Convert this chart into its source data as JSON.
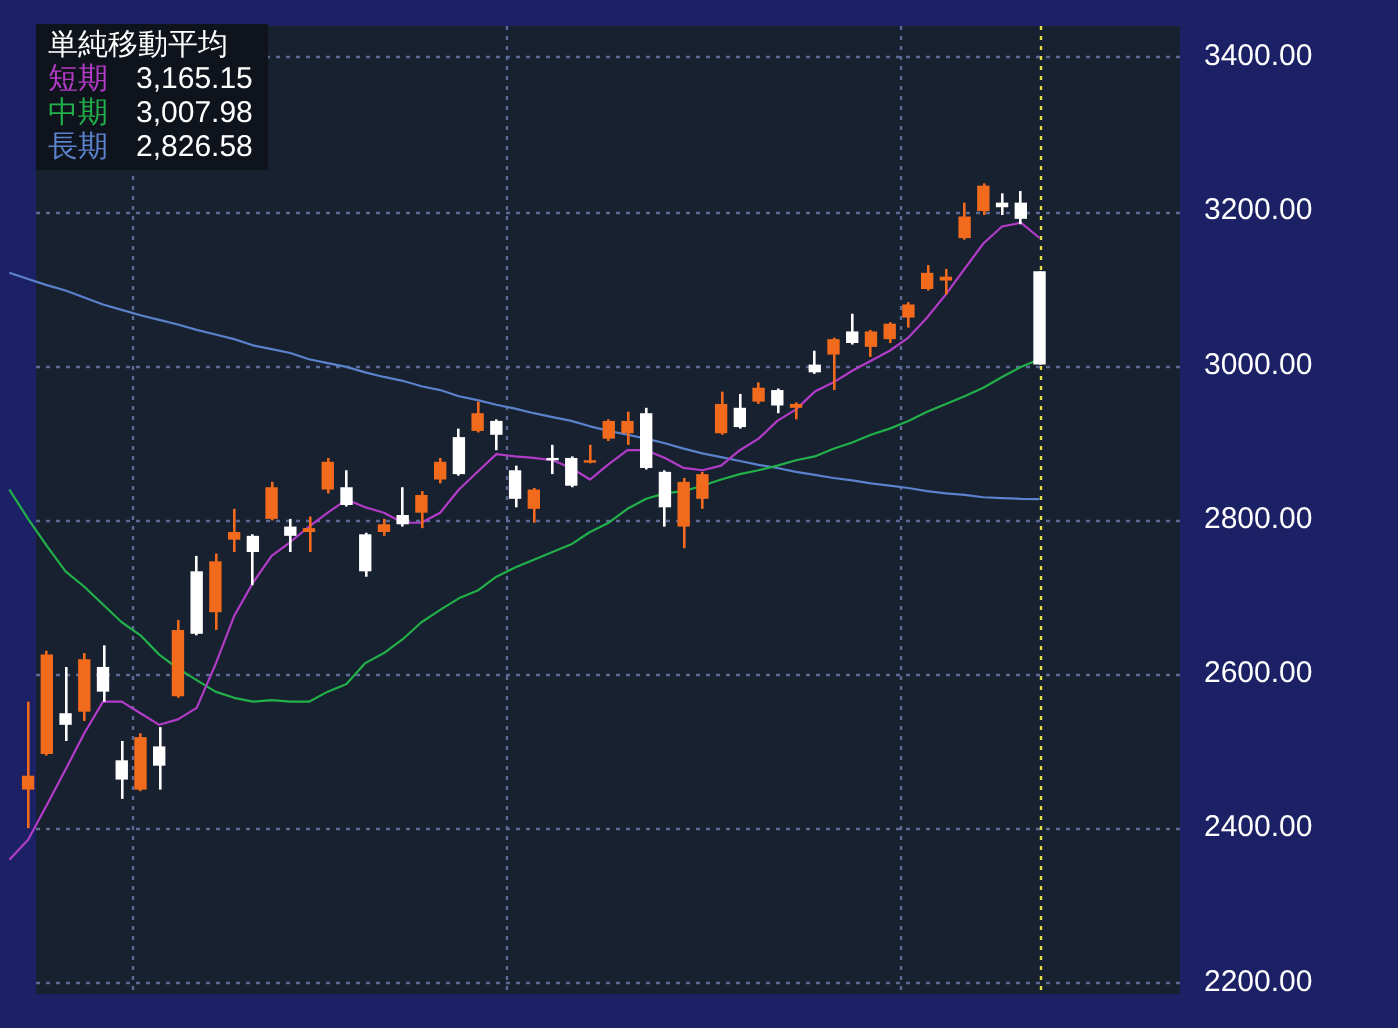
{
  "chart_data": {
    "type": "candlestick",
    "legend_title": "単純移動平均",
    "legend": "top left",
    "grid": "y",
    "categories": [
      null,
      null,
      null,
      null,
      null,
      null,
      null,
      null,
      null,
      null,
      null,
      null,
      null,
      null,
      null,
      null,
      null,
      null,
      null,
      null,
      null,
      null,
      null,
      null,
      null,
      null,
      null,
      null,
      null,
      null,
      null,
      null,
      null,
      null,
      null,
      null,
      null,
      null,
      null,
      null,
      null,
      null,
      null,
      null,
      null,
      null,
      null,
      null,
      null,
      null,
      null,
      null,
      null,
      null,
      null,
      null,
      null,
      null,
      null,
      null,
      null,
      null,
      null
    ],
    "ohlc": [
      null,
      [
        2450,
        2564,
        2400,
        2468
      ],
      [
        2496,
        2630,
        2494,
        2625
      ],
      [
        2549,
        2609,
        2513,
        2534
      ],
      [
        2551,
        2627,
        2539,
        2619
      ],
      [
        2609,
        2637,
        2564,
        2577
      ],
      [
        2488,
        2513,
        2438,
        2463
      ],
      [
        2450,
        2523,
        2448,
        2518
      ],
      [
        2506,
        2531,
        2450,
        2481
      ],
      [
        2571,
        2670,
        2569,
        2657
      ],
      [
        2733,
        2753,
        2650,
        2652
      ],
      [
        2680,
        2756,
        2657,
        2746
      ],
      [
        2774,
        2814,
        2758,
        2784
      ],
      [
        2779,
        2781,
        2715,
        2758
      ],
      [
        2801,
        2849,
        2799,
        2842
      ],
      [
        2791,
        2801,
        2758,
        2779
      ],
      [
        2784,
        2804,
        2758,
        2789
      ],
      [
        2839,
        2880,
        2834,
        2875
      ],
      [
        2842,
        2864,
        2817,
        2819
      ],
      [
        2781,
        2783,
        2726,
        2733
      ],
      [
        2784,
        2801,
        2779,
        2794
      ],
      [
        2806,
        2842,
        2791,
        2794
      ],
      [
        2809,
        2837,
        2789,
        2832
      ],
      [
        2852,
        2880,
        2847,
        2875
      ],
      [
        2907,
        2918,
        2857,
        2859
      ],
      [
        2915,
        2953,
        2913,
        2938
      ],
      [
        2928,
        2930,
        2890,
        2910
      ],
      [
        2864,
        2870,
        2816,
        2827
      ],
      [
        2814,
        2841,
        2796,
        2839
      ],
      [
        2880,
        2897,
        2859,
        2877
      ],
      [
        2880,
        2882,
        2842,
        2844
      ],
      [
        2875,
        2897,
        2873,
        2877
      ],
      [
        2905,
        2930,
        2902,
        2928
      ],
      [
        2912,
        2940,
        2897,
        2928
      ],
      [
        2938,
        2945,
        2865,
        2867
      ],
      [
        2862,
        2864,
        2791,
        2816
      ],
      [
        2791,
        2854,
        2763,
        2849
      ],
      [
        2827,
        2862,
        2814,
        2859
      ],
      [
        2912,
        2966,
        2910,
        2950
      ],
      [
        2945,
        2963,
        2918,
        2920
      ],
      [
        2953,
        2978,
        2950,
        2971
      ],
      [
        2968,
        2970,
        2938,
        2948
      ],
      [
        2945,
        2952,
        2930,
        2950
      ],
      [
        3001,
        3019,
        2989,
        2991
      ],
      [
        3014,
        3036,
        2968,
        3034
      ],
      [
        3044,
        3067,
        3027,
        3029
      ],
      [
        3024,
        3046,
        3011,
        3044
      ],
      [
        3034,
        3056,
        3029,
        3054
      ],
      [
        3062,
        3082,
        3049,
        3079
      ],
      [
        3099,
        3130,
        3097,
        3120
      ],
      [
        3110,
        3125,
        3092,
        3115
      ],
      [
        3165,
        3211,
        3163,
        3193
      ],
      [
        3200,
        3236,
        3195,
        3233
      ],
      [
        3211,
        3223,
        3195,
        3205
      ],
      [
        3211,
        3226,
        3183,
        3190
      ],
      [
        3122,
        3122,
        3001,
        3001
      ],
      null,
      null,
      null,
      null,
      null,
      null,
      null
    ],
    "colors": [
      null,
      "#f26b1d",
      "#f26b1d",
      "#ffffff",
      "#f26b1d",
      "#ffffff",
      "#ffffff",
      "#f26b1d",
      "#ffffff",
      "#f26b1d",
      "#ffffff",
      "#f26b1d",
      "#f26b1d",
      "#ffffff",
      "#f26b1d",
      "#ffffff",
      "#f26b1d",
      "#f26b1d",
      "#ffffff",
      "#ffffff",
      "#f26b1d",
      "#ffffff",
      "#f26b1d",
      "#f26b1d",
      "#ffffff",
      "#f26b1d",
      "#ffffff",
      "#ffffff",
      "#f26b1d",
      "#ffffff",
      "#ffffff",
      "#f26b1d",
      "#f26b1d",
      "#f26b1d",
      "#ffffff",
      "#ffffff",
      "#f26b1d",
      "#f26b1d",
      "#f26b1d",
      "#ffffff",
      "#f26b1d",
      "#ffffff",
      "#f26b1d",
      "#ffffff",
      "#f26b1d",
      "#ffffff",
      "#f26b1d",
      "#f26b1d",
      "#f26b1d",
      "#f26b1d",
      "#f26b1d",
      "#f26b1d",
      "#f26b1d",
      "#ffffff",
      "#ffffff",
      "#ffffff",
      null,
      null,
      null,
      null,
      null,
      null,
      null
    ],
    "series": [
      {
        "name": "短期",
        "type": "line",
        "color": "#b23cc8",
        "values": [
          2359,
          2385,
          2430,
          2476,
          2523,
          2564,
          2564,
          2549,
          2534,
          2541,
          2556,
          2612,
          2675,
          2718,
          2753,
          2771,
          2791,
          2809,
          2826,
          2816,
          2809,
          2796,
          2796,
          2809,
          2839,
          2862,
          2885,
          2882,
          2880,
          2877,
          2867,
          2852,
          2872,
          2890,
          2890,
          2880,
          2867,
          2864,
          2870,
          2890,
          2905,
          2928,
          2943,
          2966,
          2978,
          2993,
          3006,
          3019,
          3036,
          3062,
          3092,
          3125,
          3158,
          3180,
          3185,
          3165.15,
          null,
          null,
          null,
          null,
          null,
          null,
          null
        ]
      },
      {
        "name": "中期",
        "type": "line",
        "color": "#22b04a",
        "values": [
          2839,
          2801,
          2766,
          2733,
          2713,
          2690,
          2667,
          2650,
          2625,
          2607,
          2592,
          2577,
          2569,
          2564,
          2566,
          2564,
          2564,
          2577,
          2587,
          2614,
          2627,
          2645,
          2667,
          2683,
          2698,
          2708,
          2726,
          2738,
          2748,
          2758,
          2768,
          2784,
          2796,
          2814,
          2827,
          2834,
          2837,
          2844,
          2852,
          2859,
          2864,
          2870,
          2877,
          2882,
          2892,
          2900,
          2910,
          2918,
          2928,
          2940,
          2950,
          2960,
          2971,
          2985,
          2998,
          3007.98,
          null,
          null,
          null,
          null,
          null,
          null,
          null
        ]
      },
      {
        "name": "長期",
        "type": "line",
        "color": "#5b82cc",
        "values": [
          3120,
          3112,
          3104,
          3097,
          3088,
          3079,
          3072,
          3065,
          3059,
          3053,
          3046,
          3040,
          3034,
          3026,
          3021,
          3016,
          3008,
          3003,
          2998,
          2991,
          2985,
          2980,
          2973,
          2968,
          2960,
          2955,
          2949,
          2944,
          2938,
          2933,
          2928,
          2921,
          2915,
          2910,
          2905,
          2899,
          2892,
          2886,
          2881,
          2876,
          2871,
          2867,
          2862,
          2858,
          2854,
          2851,
          2847,
          2844,
          2841,
          2837,
          2834,
          2832,
          2829,
          2828,
          2827,
          2826.58,
          null,
          null,
          null,
          null,
          null,
          null,
          null
        ]
      }
    ],
    "annotations": [
      "3,165.15",
      "3,007.98",
      "2,826.58"
    ],
    "ylim": [
      2185,
      3440
    ],
    "yticks": [
      {
        "value": 2200,
        "label": "2200.00"
      },
      {
        "value": 2400,
        "label": "2400.00"
      },
      {
        "value": 2600,
        "label": "2600.00"
      },
      {
        "value": 2800,
        "label": "2800.00"
      },
      {
        "value": 3000,
        "label": "3000.00"
      },
      {
        "value": 3200,
        "label": "3200.00"
      },
      {
        "value": 3400,
        "label": "3400.00"
      }
    ]
  }
}
